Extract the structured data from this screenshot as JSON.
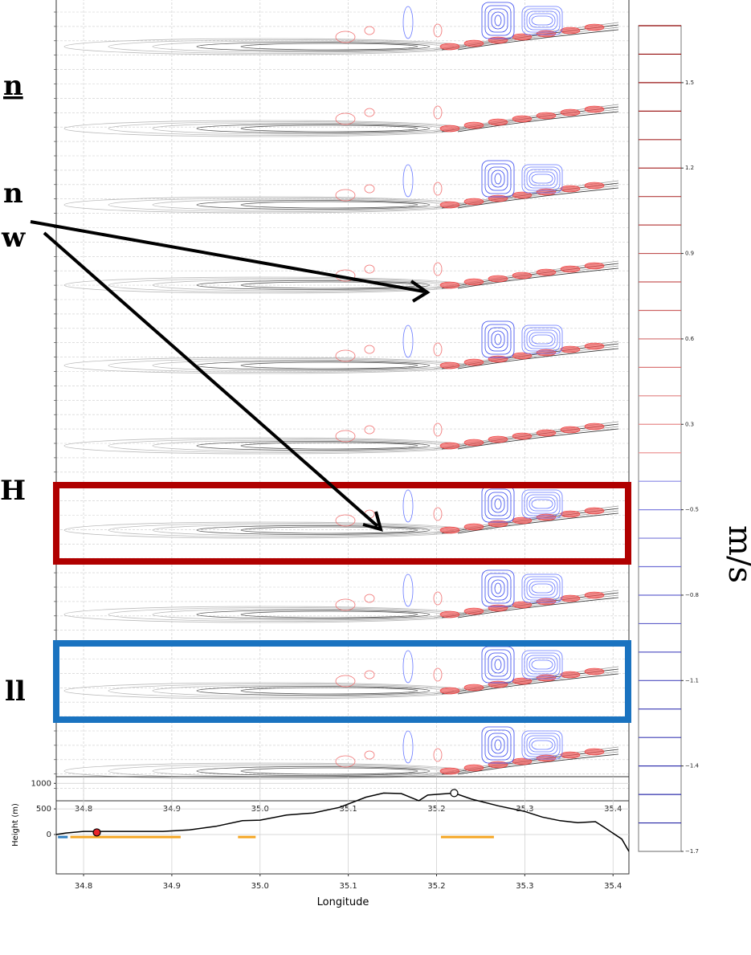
{
  "annotations": {
    "left_texts": [
      "n",
      "n",
      "w",
      "H",
      "ll"
    ]
  },
  "chart_data": [
    {
      "type": "contour",
      "xlim": [
        34.769,
        35.418
      ],
      "xticks": [
        34.8,
        34.9,
        {
          "value": 35,
          "label": "35.0"
        },
        35.1,
        35.2,
        35.3,
        35.4
      ],
      "grid": true,
      "colorbar": {
        "label": "m/s",
        "levels": [
          1.7,
          1.6,
          1.5,
          1.4,
          1.3,
          1.2,
          1.1,
          1.0,
          0.9,
          0.8,
          0.7,
          0.6,
          0.5,
          0.4,
          0.3,
          0.2,
          -0.4,
          -0.5,
          -0.6,
          -0.7,
          -0.8,
          -0.9,
          -1.0,
          -1.1,
          -1.2,
          -1.3,
          -1.4,
          -1.5,
          -1.6,
          -1.7
        ],
        "ticks": [
          1.5,
          1.2,
          0.9,
          0.6,
          0.3,
          {
            "value": -0.5,
            "label": "−0.5"
          },
          {
            "value": -0.8,
            "label": "−0.8"
          },
          {
            "value": -1.1,
            "label": "−1.1"
          },
          {
            "value": -1.4,
            "label": "−1.4"
          },
          {
            "value": -1.7,
            "label": "−1.7"
          }
        ]
      }
    },
    {
      "type": "line",
      "xlabel": "Longitude",
      "ylabel": "Height (m)",
      "xlim": [
        34.769,
        35.418
      ],
      "ylim": [
        -770,
        1130
      ],
      "xticks": [
        34.8,
        34.9,
        {
          "value": 35,
          "label": "35.0"
        },
        35.1,
        35.2,
        35.3,
        35.4
      ],
      "yticks": [
        0,
        500,
        1000
      ],
      "color": "#000000",
      "x": [
        34.769,
        34.78,
        34.8,
        34.83,
        34.89,
        34.92,
        34.95,
        34.98,
        35.0,
        35.03,
        35.06,
        35.09,
        35.12,
        35.14,
        35.16,
        35.18,
        35.19,
        35.22,
        35.24,
        35.27,
        35.3,
        35.32,
        35.34,
        35.36,
        35.38,
        35.39,
        35.41,
        35.418
      ],
      "values": [
        0,
        30,
        60,
        60,
        60,
        90,
        160,
        270,
        280,
        380,
        420,
        530,
        730,
        810,
        800,
        660,
        770,
        810,
        690,
        560,
        450,
        340,
        270,
        230,
        250,
        140,
        -90,
        -330
      ],
      "points": [
        {
          "x": 34.815,
          "y": 40,
          "color": "#e8242a"
        },
        {
          "x": 35.22,
          "y": 810,
          "color": "#ffffff"
        }
      ],
      "segments": [
        {
          "x": [
            34.771,
            34.782
          ],
          "y": -50,
          "color": "#2f7fc1"
        },
        {
          "x": [
            34.785,
            34.91
          ],
          "y": -50,
          "color": "#f5a623"
        },
        {
          "x": [
            34.975,
            34.995
          ],
          "y": -50,
          "color": "#f5a623"
        },
        {
          "x": [
            35.205,
            35.265
          ],
          "y": -50,
          "color": "#f5a623"
        }
      ]
    }
  ]
}
